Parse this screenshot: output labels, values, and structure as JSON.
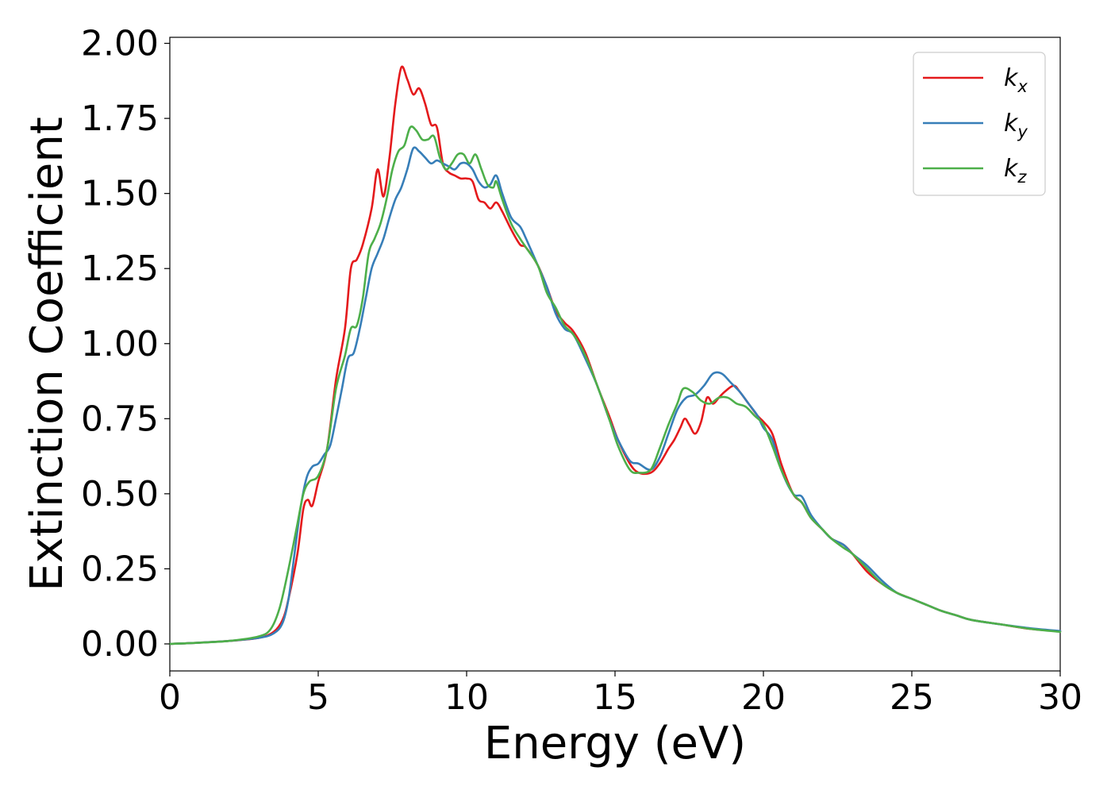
{
  "chart_data": {
    "type": "line",
    "title": "",
    "xlabel": "Energy (eV)",
    "ylabel": "Extinction Coefficient",
    "xlim": [
      0,
      30
    ],
    "ylim": [
      -0.09,
      2.02
    ],
    "xticks": [
      0,
      5,
      10,
      15,
      20,
      25,
      30
    ],
    "xtick_labels": [
      "0",
      "5",
      "10",
      "15",
      "20",
      "25",
      "30"
    ],
    "yticks": [
      0,
      0.25,
      0.5,
      0.75,
      1.0,
      1.25,
      1.5,
      1.75,
      2.0
    ],
    "ytick_labels": [
      "0.00",
      "0.25",
      "0.50",
      "0.75",
      "1.00",
      "1.25",
      "1.50",
      "1.75",
      "2.00"
    ],
    "grid": false,
    "legend_position": "top-right",
    "series": [
      {
        "name": "k_x",
        "label_main": "k",
        "label_sub": "x",
        "color": "#e41a1c",
        "points": [
          [
            0,
            0
          ],
          [
            1,
            0.004
          ],
          [
            2,
            0.01
          ],
          [
            3,
            0.02
          ],
          [
            3.5,
            0.04
          ],
          [
            3.8,
            0.08
          ],
          [
            4,
            0.15
          ],
          [
            4.3,
            0.3
          ],
          [
            4.5,
            0.45
          ],
          [
            4.65,
            0.48
          ],
          [
            4.8,
            0.46
          ],
          [
            5,
            0.54
          ],
          [
            5.3,
            0.65
          ],
          [
            5.6,
            0.88
          ],
          [
            5.9,
            1.05
          ],
          [
            6.1,
            1.25
          ],
          [
            6.3,
            1.28
          ],
          [
            6.5,
            1.33
          ],
          [
            6.8,
            1.45
          ],
          [
            7,
            1.58
          ],
          [
            7.2,
            1.49
          ],
          [
            7.4,
            1.62
          ],
          [
            7.6,
            1.8
          ],
          [
            7.8,
            1.92
          ],
          [
            8,
            1.88
          ],
          [
            8.2,
            1.83
          ],
          [
            8.4,
            1.85
          ],
          [
            8.6,
            1.8
          ],
          [
            8.8,
            1.73
          ],
          [
            9,
            1.72
          ],
          [
            9.2,
            1.6
          ],
          [
            9.4,
            1.57
          ],
          [
            9.6,
            1.56
          ],
          [
            9.8,
            1.55
          ],
          [
            10,
            1.55
          ],
          [
            10.2,
            1.54
          ],
          [
            10.4,
            1.48
          ],
          [
            10.6,
            1.47
          ],
          [
            10.8,
            1.45
          ],
          [
            11,
            1.47
          ],
          [
            11.2,
            1.44
          ],
          [
            11.5,
            1.38
          ],
          [
            11.8,
            1.33
          ],
          [
            12,
            1.32
          ],
          [
            12.4,
            1.26
          ],
          [
            12.7,
            1.19
          ],
          [
            13,
            1.11
          ],
          [
            13.3,
            1.07
          ],
          [
            13.6,
            1.04
          ],
          [
            14,
            0.97
          ],
          [
            14.4,
            0.86
          ],
          [
            14.8,
            0.76
          ],
          [
            15.1,
            0.68
          ],
          [
            15.5,
            0.6
          ],
          [
            15.8,
            0.57
          ],
          [
            16.2,
            0.57
          ],
          [
            16.5,
            0.6
          ],
          [
            16.8,
            0.65
          ],
          [
            17,
            0.68
          ],
          [
            17.2,
            0.72
          ],
          [
            17.35,
            0.75
          ],
          [
            17.5,
            0.73
          ],
          [
            17.7,
            0.7
          ],
          [
            17.9,
            0.74
          ],
          [
            18.1,
            0.82
          ],
          [
            18.3,
            0.8
          ],
          [
            18.5,
            0.82
          ],
          [
            18.7,
            0.84
          ],
          [
            19,
            0.86
          ],
          [
            19.2,
            0.84
          ],
          [
            19.5,
            0.8
          ],
          [
            19.8,
            0.76
          ],
          [
            20,
            0.74
          ],
          [
            20.3,
            0.7
          ],
          [
            20.6,
            0.6
          ],
          [
            21,
            0.5
          ],
          [
            21.3,
            0.47
          ],
          [
            21.6,
            0.42
          ],
          [
            22,
            0.38
          ],
          [
            22.3,
            0.35
          ],
          [
            22.7,
            0.33
          ],
          [
            23,
            0.3
          ],
          [
            23.5,
            0.24
          ],
          [
            24,
            0.2
          ],
          [
            24.5,
            0.17
          ],
          [
            25,
            0.15
          ],
          [
            25.5,
            0.13
          ],
          [
            26,
            0.11
          ],
          [
            26.5,
            0.095
          ],
          [
            27,
            0.08
          ],
          [
            28,
            0.065
          ],
          [
            29,
            0.05
          ],
          [
            30,
            0.042
          ]
        ]
      },
      {
        "name": "k_y",
        "label_main": "k",
        "label_sub": "y",
        "color": "#377eb8",
        "points": [
          [
            0,
            0
          ],
          [
            1,
            0.004
          ],
          [
            2,
            0.01
          ],
          [
            3,
            0.02
          ],
          [
            3.5,
            0.035
          ],
          [
            3.8,
            0.07
          ],
          [
            4,
            0.15
          ],
          [
            4.2,
            0.3
          ],
          [
            4.4,
            0.45
          ],
          [
            4.6,
            0.55
          ],
          [
            4.8,
            0.59
          ],
          [
            5,
            0.6
          ],
          [
            5.2,
            0.63
          ],
          [
            5.4,
            0.66
          ],
          [
            5.6,
            0.75
          ],
          [
            5.8,
            0.85
          ],
          [
            6,
            0.95
          ],
          [
            6.2,
            0.97
          ],
          [
            6.4,
            1.05
          ],
          [
            6.6,
            1.15
          ],
          [
            6.8,
            1.25
          ],
          [
            7,
            1.3
          ],
          [
            7.2,
            1.35
          ],
          [
            7.4,
            1.42
          ],
          [
            7.6,
            1.48
          ],
          [
            7.8,
            1.52
          ],
          [
            8,
            1.58
          ],
          [
            8.2,
            1.65
          ],
          [
            8.4,
            1.64
          ],
          [
            8.6,
            1.62
          ],
          [
            8.8,
            1.6
          ],
          [
            9,
            1.61
          ],
          [
            9.2,
            1.6
          ],
          [
            9.4,
            1.59
          ],
          [
            9.6,
            1.58
          ],
          [
            9.8,
            1.6
          ],
          [
            10,
            1.6
          ],
          [
            10.2,
            1.58
          ],
          [
            10.4,
            1.54
          ],
          [
            10.6,
            1.52
          ],
          [
            10.8,
            1.53
          ],
          [
            11,
            1.56
          ],
          [
            11.2,
            1.5
          ],
          [
            11.5,
            1.42
          ],
          [
            11.8,
            1.39
          ],
          [
            12,
            1.35
          ],
          [
            12.4,
            1.26
          ],
          [
            12.7,
            1.19
          ],
          [
            13,
            1.1
          ],
          [
            13.3,
            1.05
          ],
          [
            13.6,
            1.03
          ],
          [
            14,
            0.95
          ],
          [
            14.4,
            0.86
          ],
          [
            14.8,
            0.75
          ],
          [
            15.1,
            0.68
          ],
          [
            15.5,
            0.61
          ],
          [
            15.8,
            0.6
          ],
          [
            16.2,
            0.58
          ],
          [
            16.5,
            0.62
          ],
          [
            16.8,
            0.7
          ],
          [
            17.1,
            0.78
          ],
          [
            17.4,
            0.82
          ],
          [
            17.7,
            0.83
          ],
          [
            18,
            0.86
          ],
          [
            18.3,
            0.9
          ],
          [
            18.6,
            0.9
          ],
          [
            18.9,
            0.87
          ],
          [
            19.2,
            0.84
          ],
          [
            19.5,
            0.8
          ],
          [
            19.8,
            0.76
          ],
          [
            20,
            0.72
          ],
          [
            20.3,
            0.68
          ],
          [
            20.6,
            0.58
          ],
          [
            21,
            0.5
          ],
          [
            21.3,
            0.49
          ],
          [
            21.6,
            0.43
          ],
          [
            22,
            0.38
          ],
          [
            22.3,
            0.35
          ],
          [
            22.7,
            0.33
          ],
          [
            23,
            0.3
          ],
          [
            23.5,
            0.26
          ],
          [
            24,
            0.21
          ],
          [
            24.5,
            0.17
          ],
          [
            25,
            0.15
          ],
          [
            25.5,
            0.13
          ],
          [
            26,
            0.11
          ],
          [
            26.5,
            0.095
          ],
          [
            27,
            0.08
          ],
          [
            28,
            0.065
          ],
          [
            29,
            0.052
          ],
          [
            30,
            0.043
          ]
        ]
      },
      {
        "name": "k_z",
        "label_main": "k",
        "label_sub": "z",
        "color": "#4daf4a",
        "points": [
          [
            0,
            0
          ],
          [
            1,
            0.004
          ],
          [
            2,
            0.01
          ],
          [
            3,
            0.025
          ],
          [
            3.4,
            0.05
          ],
          [
            3.7,
            0.12
          ],
          [
            4,
            0.25
          ],
          [
            4.3,
            0.4
          ],
          [
            4.5,
            0.5
          ],
          [
            4.7,
            0.54
          ],
          [
            5,
            0.56
          ],
          [
            5.3,
            0.65
          ],
          [
            5.6,
            0.85
          ],
          [
            5.9,
            0.96
          ],
          [
            6.1,
            1.05
          ],
          [
            6.3,
            1.06
          ],
          [
            6.5,
            1.15
          ],
          [
            6.7,
            1.3
          ],
          [
            6.9,
            1.35
          ],
          [
            7.1,
            1.4
          ],
          [
            7.3,
            1.48
          ],
          [
            7.5,
            1.58
          ],
          [
            7.7,
            1.64
          ],
          [
            7.9,
            1.66
          ],
          [
            8.1,
            1.72
          ],
          [
            8.3,
            1.71
          ],
          [
            8.5,
            1.68
          ],
          [
            8.7,
            1.68
          ],
          [
            8.9,
            1.69
          ],
          [
            9.1,
            1.62
          ],
          [
            9.3,
            1.58
          ],
          [
            9.5,
            1.6
          ],
          [
            9.7,
            1.63
          ],
          [
            9.9,
            1.63
          ],
          [
            10.1,
            1.6
          ],
          [
            10.3,
            1.63
          ],
          [
            10.5,
            1.58
          ],
          [
            10.7,
            1.53
          ],
          [
            10.9,
            1.52
          ],
          [
            11,
            1.54
          ],
          [
            11.2,
            1.48
          ],
          [
            11.5,
            1.4
          ],
          [
            11.8,
            1.35
          ],
          [
            12,
            1.32
          ],
          [
            12.4,
            1.26
          ],
          [
            12.7,
            1.17
          ],
          [
            13,
            1.12
          ],
          [
            13.3,
            1.06
          ],
          [
            13.6,
            1.03
          ],
          [
            14,
            0.96
          ],
          [
            14.4,
            0.86
          ],
          [
            14.8,
            0.75
          ],
          [
            15.1,
            0.66
          ],
          [
            15.5,
            0.58
          ],
          [
            15.8,
            0.57
          ],
          [
            16.2,
            0.58
          ],
          [
            16.5,
            0.65
          ],
          [
            16.8,
            0.73
          ],
          [
            17.1,
            0.8
          ],
          [
            17.3,
            0.85
          ],
          [
            17.6,
            0.84
          ],
          [
            17.9,
            0.81
          ],
          [
            18.2,
            0.8
          ],
          [
            18.5,
            0.82
          ],
          [
            18.8,
            0.82
          ],
          [
            19.1,
            0.8
          ],
          [
            19.4,
            0.79
          ],
          [
            19.7,
            0.76
          ],
          [
            20,
            0.73
          ],
          [
            20.3,
            0.66
          ],
          [
            20.6,
            0.58
          ],
          [
            21,
            0.5
          ],
          [
            21.3,
            0.47
          ],
          [
            21.6,
            0.42
          ],
          [
            22,
            0.38
          ],
          [
            22.3,
            0.35
          ],
          [
            22.7,
            0.32
          ],
          [
            23,
            0.3
          ],
          [
            23.5,
            0.25
          ],
          [
            24,
            0.2
          ],
          [
            24.5,
            0.17
          ],
          [
            25,
            0.15
          ],
          [
            25.5,
            0.13
          ],
          [
            26,
            0.11
          ],
          [
            26.5,
            0.095
          ],
          [
            27,
            0.08
          ],
          [
            28,
            0.065
          ],
          [
            29,
            0.05
          ],
          [
            30,
            0.04
          ]
        ]
      }
    ]
  }
}
